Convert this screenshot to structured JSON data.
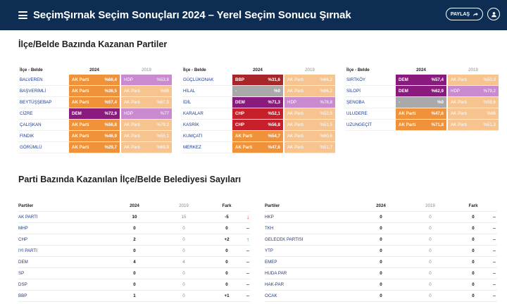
{
  "header": {
    "brand": "Seçim",
    "title": "Şırnak Seçim Sonuçları 2024 – Yerel Seçim Sonucu Şırnak",
    "share_label": "PAYLAŞ"
  },
  "section1": {
    "title": "İlçe/Belde Bazında Kazanan Partiler"
  },
  "district_tables": [
    {
      "headers": [
        "İlçe - Belde",
        "2024",
        "2019"
      ],
      "rows": [
        {
          "name": "BALVEREN",
          "p24": "AK Parti",
          "v24": "%66,4",
          "c24": "#f0923a",
          "p19": "HDP",
          "v19": "%53,8",
          "c19": "#c98ad0"
        },
        {
          "name": "BAŞVERİMLİ",
          "p24": "AK Parti",
          "v24": "%36,5",
          "c24": "#f0923a",
          "p19": "AK Parti",
          "v19": "%69",
          "c19": "#f7c48f"
        },
        {
          "name": "BEYTÜŞŞEBAP",
          "p24": "AK Parti",
          "v24": "%57,4",
          "c24": "#f0923a",
          "p19": "AK Parti",
          "v19": "%67,5",
          "c19": "#f7c48f"
        },
        {
          "name": "CİZRE",
          "p24": "DEM",
          "v24": "%72,9",
          "c24": "#8b1a7e",
          "p19": "HDP",
          "v19": "%77",
          "c19": "#c98ad0"
        },
        {
          "name": "ÇALIŞKAN",
          "p24": "AK Parti",
          "v24": "%56,8",
          "c24": "#f0923a",
          "p19": "AK Parti",
          "v19": "%79,2",
          "c19": "#f7c48f"
        },
        {
          "name": "FINDIK",
          "p24": "AK Parti",
          "v24": "%46,9",
          "c24": "#f0923a",
          "p19": "AK Parti",
          "v19": "%55,1",
          "c19": "#f7c48f"
        },
        {
          "name": "GÖRÜMLÜ",
          "p24": "AK Parti",
          "v24": "%29,7",
          "c24": "#f0923a",
          "p19": "AK Parti",
          "v19": "%69,9",
          "c19": "#f7c48f"
        }
      ]
    },
    {
      "headers": [
        "İlçe - Belde",
        "2024",
        "2019"
      ],
      "rows": [
        {
          "name": "GÜÇLÜKONAK",
          "p24": "BBP",
          "v24": "%31,6",
          "c24": "#a8262a",
          "p19": "AK Parti",
          "v19": "%66,2",
          "c19": "#f7c48f"
        },
        {
          "name": "HİLAL",
          "p24": "-",
          "v24": "%0",
          "c24": "#a9a9a9",
          "p19": "AK Parti",
          "v19": "%86,2",
          "c19": "#f7c48f"
        },
        {
          "name": "İDİL",
          "p24": "DEM",
          "v24": "%71,3",
          "c24": "#8b1a7e",
          "p19": "HDP",
          "v19": "%78,8",
          "c19": "#c98ad0"
        },
        {
          "name": "KARALAR",
          "p24": "CHP",
          "v24": "%52,1",
          "c24": "#c8202a",
          "p19": "AK Parti",
          "v19": "%52,9",
          "c19": "#f7c48f"
        },
        {
          "name": "KASRİK",
          "p24": "CHP",
          "v24": "%56,8",
          "c24": "#c8202a",
          "p19": "AK Parti",
          "v19": "%51,5",
          "c19": "#f7c48f"
        },
        {
          "name": "KUMÇATI",
          "p24": "AK Parti",
          "v24": "%54,7",
          "c24": "#f0923a",
          "p19": "AK Parti",
          "v19": "%80,6",
          "c19": "#f7c48f"
        },
        {
          "name": "MERKEZ",
          "p24": "AK Parti",
          "v24": "%47,6",
          "c24": "#f0923a",
          "p19": "AK Parti",
          "v19": "%51,7",
          "c19": "#f7c48f"
        }
      ]
    },
    {
      "headers": [
        "İlçe - Belde",
        "2024",
        "2019"
      ],
      "rows": [
        {
          "name": "SIRTKÖY",
          "p24": "DEM",
          "v24": "%57,4",
          "c24": "#8b1a7e",
          "p19": "AK Parti",
          "v19": "%50,3",
          "c19": "#f7c48f"
        },
        {
          "name": "SİLOPİ",
          "p24": "DEM",
          "v24": "%62,9",
          "c24": "#8b1a7e",
          "p19": "HDP",
          "v19": "%79,2",
          "c19": "#c98ad0"
        },
        {
          "name": "ŞENOBA",
          "p24": "-",
          "v24": "%0",
          "c24": "#a9a9a9",
          "p19": "AK Parti",
          "v19": "%59,6",
          "c19": "#f7c48f"
        },
        {
          "name": "ULUDERE",
          "p24": "AK Parti",
          "v24": "%47,6",
          "c24": "#f0923a",
          "p19": "AK Parti",
          "v19": "%66",
          "c19": "#f7c48f"
        },
        {
          "name": "UZUNGEÇİT",
          "p24": "AK Parti",
          "v24": "%71,8",
          "c24": "#f0923a",
          "p19": "AK Parti",
          "v19": "%51,3",
          "c19": "#f7c48f"
        }
      ]
    }
  ],
  "section2": {
    "title": "Parti Bazında Kazanılan İlçe/Belde Belediyesi Sayıları"
  },
  "party_tables": [
    {
      "headers": [
        "Partiler",
        "2024",
        "2019",
        "Fark"
      ],
      "rows": [
        {
          "name": "AK PARTİ",
          "v24": "10",
          "v19": "15",
          "diff": "-5",
          "arrow": "↓",
          "arrow_color": "#d9302a"
        },
        {
          "name": "MHP",
          "v24": "0",
          "v19": "0",
          "diff": "0",
          "arrow": "–",
          "arrow_color": "#666666"
        },
        {
          "name": "CHP",
          "v24": "2",
          "v19": "0",
          "diff": "+2",
          "arrow": "↑",
          "arrow_color": "#2a9a3a"
        },
        {
          "name": "İYİ PARTİ",
          "v24": "0",
          "v19": "0",
          "diff": "0",
          "arrow": "–",
          "arrow_color": "#666666"
        },
        {
          "name": "DEM",
          "v24": "4",
          "v19": "4",
          "diff": "0",
          "arrow": "–",
          "arrow_color": "#666666"
        },
        {
          "name": "SP",
          "v24": "0",
          "v19": "0",
          "diff": "0",
          "arrow": "–",
          "arrow_color": "#666666"
        },
        {
          "name": "DSP",
          "v24": "0",
          "v19": "0",
          "diff": "0",
          "arrow": "–",
          "arrow_color": "#666666"
        },
        {
          "name": "BBP",
          "v24": "1",
          "v19": "0",
          "diff": "+1",
          "arrow": "–",
          "arrow_color": "#666666"
        }
      ]
    },
    {
      "headers": [
        "Partiler",
        "2024",
        "2019",
        "Fark"
      ],
      "rows": [
        {
          "name": "HKP",
          "v24": "0",
          "v19": "0",
          "diff": "0",
          "arrow": "–",
          "arrow_color": "#666666"
        },
        {
          "name": "TKH",
          "v24": "0",
          "v19": "0",
          "diff": "0",
          "arrow": "–",
          "arrow_color": "#666666"
        },
        {
          "name": "GELECEK PARTİSİ",
          "v24": "0",
          "v19": "0",
          "diff": "0",
          "arrow": "–",
          "arrow_color": "#666666"
        },
        {
          "name": "YTP",
          "v24": "0",
          "v19": "0",
          "diff": "0",
          "arrow": "–",
          "arrow_color": "#666666"
        },
        {
          "name": "EMEP",
          "v24": "0",
          "v19": "0",
          "diff": "0",
          "arrow": "–",
          "arrow_color": "#666666"
        },
        {
          "name": "HÜDA PAR",
          "v24": "0",
          "v19": "0",
          "diff": "0",
          "arrow": "–",
          "arrow_color": "#666666"
        },
        {
          "name": "HAK-PAR",
          "v24": "0",
          "v19": "0",
          "diff": "0",
          "arrow": "–",
          "arrow_color": "#666666"
        },
        {
          "name": "OCAK",
          "v24": "0",
          "v19": "0",
          "diff": "0",
          "arrow": "–",
          "arrow_color": "#666666"
        }
      ]
    }
  ]
}
